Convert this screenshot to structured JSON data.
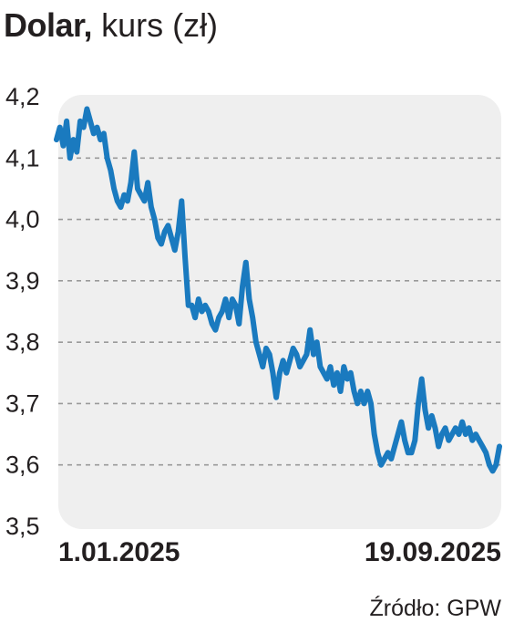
{
  "title": {
    "bold": "Dolar,",
    "rest": "kurs (zł)"
  },
  "source": "Źródło: GPW",
  "colors": {
    "line": "#1a7abf",
    "plot_bg": "#efefef",
    "grid": "#9a9a9a",
    "text": "#231f20"
  },
  "chart_data": {
    "type": "line",
    "title": "Dolar, kurs (zł)",
    "xlabel": "",
    "ylabel": "",
    "ylim": [
      3.5,
      4.2
    ],
    "yticks": [
      3.5,
      3.6,
      3.7,
      3.8,
      3.9,
      4.0,
      4.1,
      4.2
    ],
    "ytick_labels": [
      "3,5",
      "3,6",
      "3,7",
      "3,8",
      "3,9",
      "4,0",
      "4,1",
      "4,2"
    ],
    "xtick_labels": [
      "1.01.2025",
      "19.09.2025"
    ],
    "grid": "horizontal dashed",
    "series": [
      {
        "values": [
          4.13,
          4.15,
          4.12,
          4.16,
          4.1,
          4.13,
          4.11,
          4.16,
          4.15,
          4.18,
          4.16,
          4.14,
          4.15,
          4.13,
          4.14,
          4.1,
          4.08,
          4.05,
          4.03,
          4.02,
          4.04,
          4.03,
          4.06,
          4.11,
          4.05,
          4.04,
          4.03,
          4.06,
          4.02,
          4.0,
          3.97,
          3.96,
          3.98,
          3.99,
          3.97,
          3.95,
          3.98,
          4.03,
          3.94,
          3.86,
          3.86,
          3.84,
          3.87,
          3.85,
          3.86,
          3.85,
          3.83,
          3.82,
          3.84,
          3.85,
          3.87,
          3.84,
          3.87,
          3.86,
          3.83,
          3.89,
          3.93,
          3.87,
          3.84,
          3.8,
          3.78,
          3.76,
          3.79,
          3.78,
          3.75,
          3.71,
          3.75,
          3.77,
          3.75,
          3.77,
          3.79,
          3.78,
          3.76,
          3.77,
          3.78,
          3.82,
          3.78,
          3.8,
          3.76,
          3.75,
          3.74,
          3.76,
          3.73,
          3.75,
          3.72,
          3.76,
          3.74,
          3.75,
          3.72,
          3.7,
          3.72,
          3.7,
          3.72,
          3.7,
          3.65,
          3.62,
          3.6,
          3.61,
          3.62,
          3.61,
          3.63,
          3.65,
          3.67,
          3.64,
          3.62,
          3.62,
          3.64,
          3.7,
          3.74,
          3.69,
          3.66,
          3.68,
          3.66,
          3.63,
          3.65,
          3.66,
          3.64,
          3.65,
          3.66,
          3.65,
          3.67,
          3.65,
          3.66,
          3.64,
          3.65,
          3.64,
          3.63,
          3.62,
          3.6,
          3.59,
          3.6,
          3.63
        ]
      }
    ]
  }
}
